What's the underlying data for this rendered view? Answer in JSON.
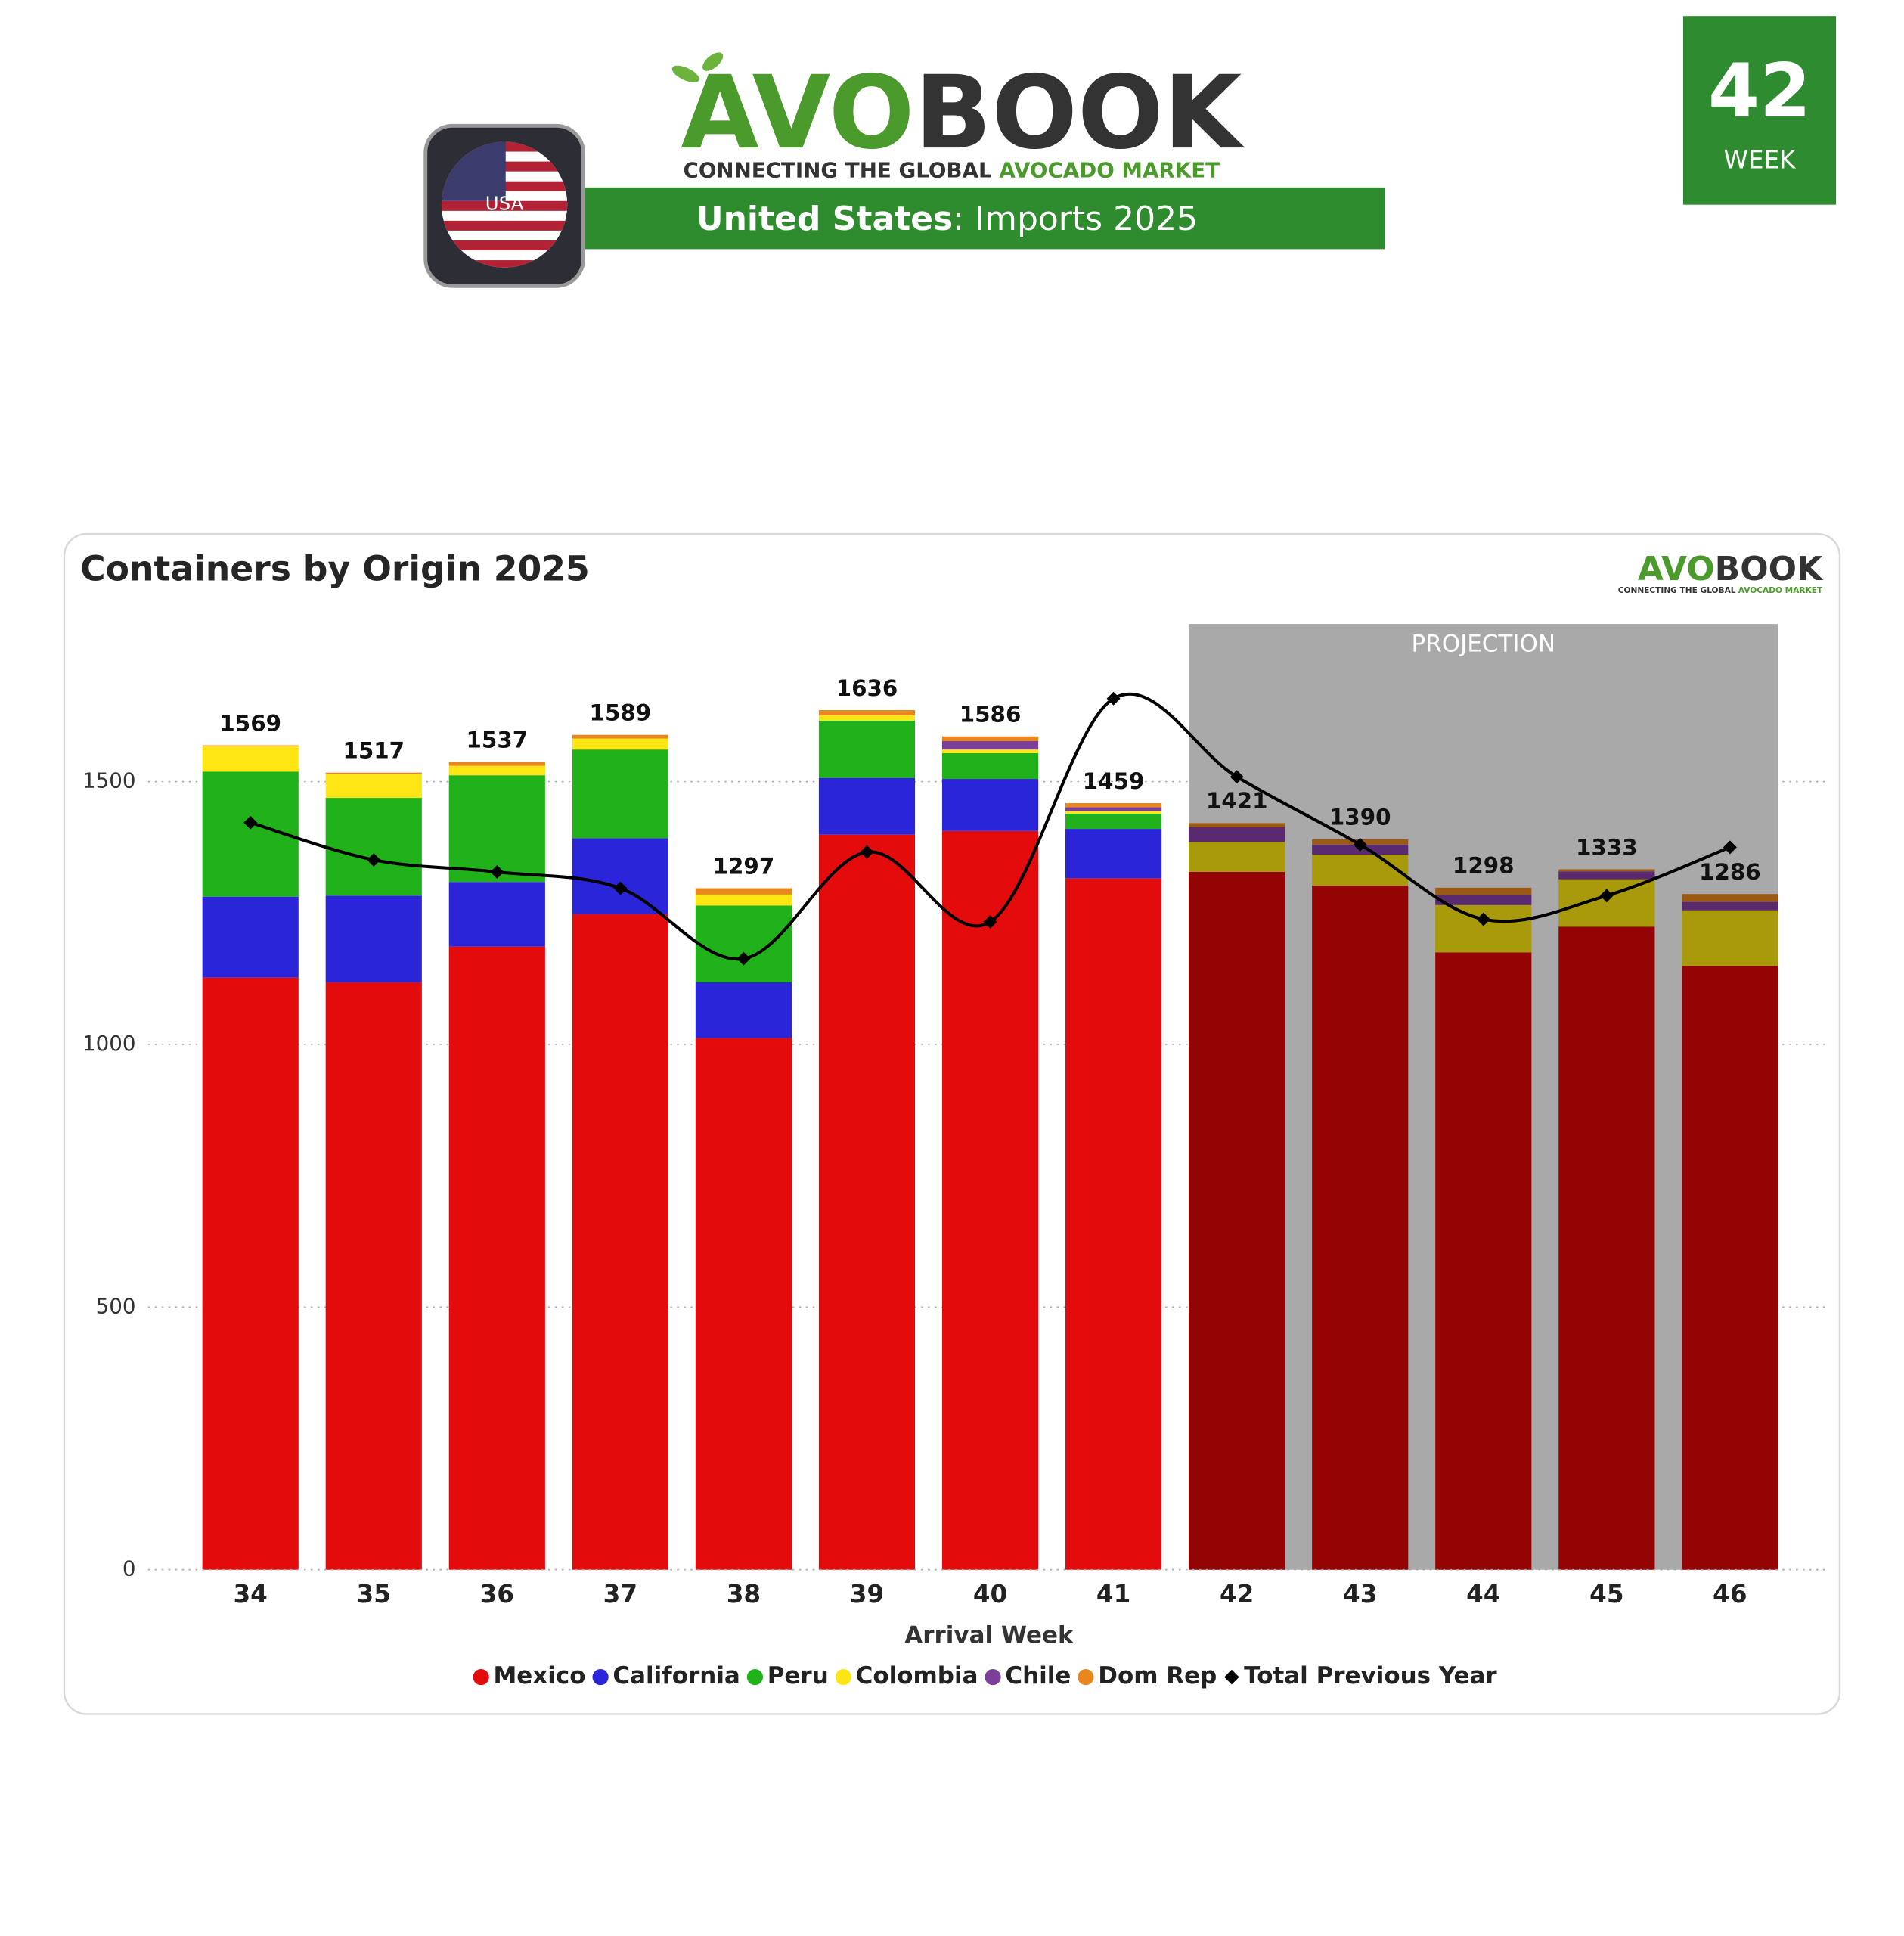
{
  "header": {
    "logo_left": "AVO",
    "logo_right": "BOOK",
    "tagline_left": "CONNECTING THE GLOBAL",
    "tagline_right": "AVOCADO MARKET",
    "country": "United States",
    "subtitle": ": Imports 2025",
    "flag_label": "USA",
    "week": "42",
    "week_label": "WEEK"
  },
  "chart_data": {
    "type": "bar",
    "stacked": true,
    "title": "Containers by Origin 2025",
    "x_label": "Arrival Week",
    "categories": [
      "34",
      "35",
      "36",
      "37",
      "38",
      "39",
      "40",
      "41",
      "42",
      "43",
      "44",
      "45",
      "46"
    ],
    "series": [
      {
        "name": "Mexico",
        "color": "#e30b0b",
        "projection_color": "#950404",
        "values": [
          1127,
          1118,
          1186,
          1248,
          1012,
          1399,
          1406,
          1316,
          1328,
          1302,
          1175,
          1224,
          1149
        ]
      },
      {
        "name": "California",
        "color": "#2a25d9",
        "projection_color": "#1a1580",
        "values": [
          154,
          165,
          123,
          144,
          106,
          108,
          99,
          94,
          0,
          0,
          0,
          0,
          0
        ]
      },
      {
        "name": "Peru",
        "color": "#21b11a",
        "projection_color": "#127010",
        "values": [
          238,
          186,
          203,
          169,
          146,
          109,
          49,
          29,
          0,
          0,
          0,
          0,
          0
        ]
      },
      {
        "name": "Colombia",
        "color": "#fde614",
        "projection_color": "#a89a0a",
        "values": [
          48,
          45,
          18,
          21,
          21,
          10,
          7,
          5,
          57,
          59,
          90,
          90,
          106
        ]
      },
      {
        "name": "Chile",
        "color": "#7b3f9a",
        "projection_color": "#5a2a70",
        "values": [
          0,
          0,
          0,
          0,
          0,
          0,
          16,
          7,
          28,
          19,
          19,
          15,
          16
        ]
      },
      {
        "name": "Dom Rep",
        "color": "#e8871e",
        "projection_color": "#9a5a14",
        "values": [
          2,
          3,
          7,
          7,
          12,
          10,
          9,
          8,
          8,
          10,
          14,
          4,
          15
        ]
      },
      {
        "name": "Total Previous Year",
        "type": "line",
        "marker": "diamond",
        "color": "#000000",
        "values": [
          1422,
          1351,
          1328,
          1297,
          1163,
          1366,
          1233,
          1658,
          1509,
          1380,
          1238,
          1283,
          1375
        ]
      }
    ],
    "totals": [
      1569,
      1517,
      1537,
      1589,
      1297,
      1636,
      1586,
      1459,
      1421,
      1390,
      1298,
      1333,
      1286
    ],
    "ylim": [
      0,
      1800
    ],
    "yticks": [
      0,
      500,
      1000,
      1500
    ],
    "grid": true,
    "legend": "bottom",
    "projection": {
      "label": "PROJECTION",
      "start": "42"
    }
  }
}
